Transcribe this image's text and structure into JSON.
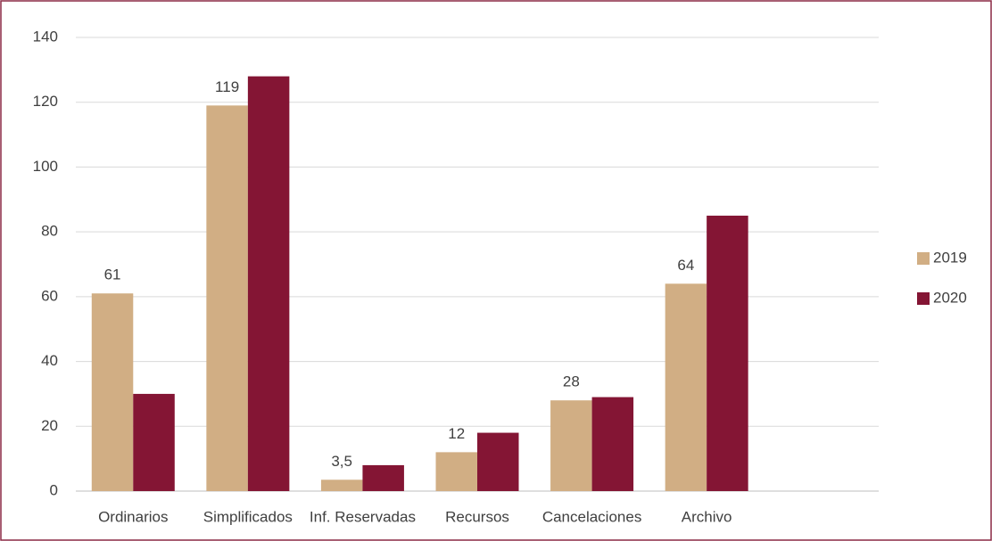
{
  "chart_data": {
    "type": "bar",
    "categories": [
      "Ordinarios",
      "Simplificados",
      "Inf. Reservadas",
      "Recursos",
      "Cancelaciones",
      "Archivo",
      null
    ],
    "series": [
      {
        "name": "2019",
        "color": "#d1ae84",
        "values": [
          61,
          119,
          3.5,
          12,
          28,
          64,
          null
        ],
        "value_labels": [
          "61",
          "119",
          "3,5",
          "12",
          "28",
          "64",
          null
        ]
      },
      {
        "name": "2020",
        "color": "#841534",
        "values": [
          30,
          128,
          8,
          18,
          29,
          85,
          null
        ]
      }
    ],
    "ylim": [
      0,
      140
    ],
    "yticks": [
      0,
      20,
      40,
      60,
      80,
      100,
      120,
      140
    ],
    "grid": true,
    "legend": "right"
  }
}
